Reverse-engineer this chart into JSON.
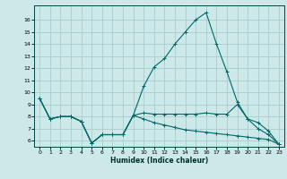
{
  "xlabel": "Humidex (Indice chaleur)",
  "background_color": "#cce8e8",
  "grid_color": "#aacccc",
  "line_color": "#006868",
  "xlim": [
    -0.5,
    23.5
  ],
  "ylim": [
    5.5,
    17.2
  ],
  "xticks": [
    0,
    1,
    2,
    3,
    4,
    5,
    6,
    7,
    8,
    9,
    10,
    11,
    12,
    13,
    14,
    15,
    16,
    17,
    18,
    19,
    20,
    21,
    22,
    23
  ],
  "yticks": [
    6,
    7,
    8,
    9,
    10,
    11,
    12,
    13,
    14,
    15,
    16
  ],
  "series": [
    {
      "x": [
        0,
        1,
        2,
        3,
        4,
        5,
        6,
        7,
        8,
        9,
        10,
        11,
        12,
        13,
        14,
        15,
        16,
        17,
        18,
        19,
        20,
        21,
        22,
        23
      ],
      "y": [
        9.5,
        7.8,
        8.0,
        8.0,
        7.6,
        5.8,
        6.5,
        6.5,
        6.5,
        8.1,
        10.5,
        12.1,
        12.8,
        14.0,
        15.0,
        16.0,
        16.6,
        14.0,
        11.7,
        9.2,
        7.8,
        7.0,
        6.5,
        5.7
      ]
    },
    {
      "x": [
        0,
        1,
        2,
        3,
        4,
        5,
        6,
        7,
        8,
        9,
        10,
        11,
        12,
        13,
        14,
        15,
        16,
        17,
        18,
        19,
        20,
        21,
        22,
        23
      ],
      "y": [
        9.5,
        7.8,
        8.0,
        8.0,
        7.6,
        5.8,
        6.5,
        6.5,
        6.5,
        8.1,
        8.3,
        8.2,
        8.2,
        8.2,
        8.2,
        8.2,
        8.3,
        8.2,
        8.2,
        9.0,
        7.8,
        7.5,
        6.8,
        5.7
      ]
    },
    {
      "x": [
        0,
        1,
        2,
        3,
        4,
        5,
        6,
        7,
        8,
        9,
        10,
        11,
        12,
        13,
        14,
        15,
        16,
        17,
        18,
        19,
        20,
        21,
        22,
        23
      ],
      "y": [
        9.5,
        7.8,
        8.0,
        8.0,
        7.6,
        5.8,
        6.5,
        6.5,
        6.5,
        8.1,
        7.8,
        7.5,
        7.3,
        7.1,
        6.9,
        6.8,
        6.7,
        6.6,
        6.5,
        6.4,
        6.3,
        6.2,
        6.1,
        5.7
      ]
    }
  ]
}
